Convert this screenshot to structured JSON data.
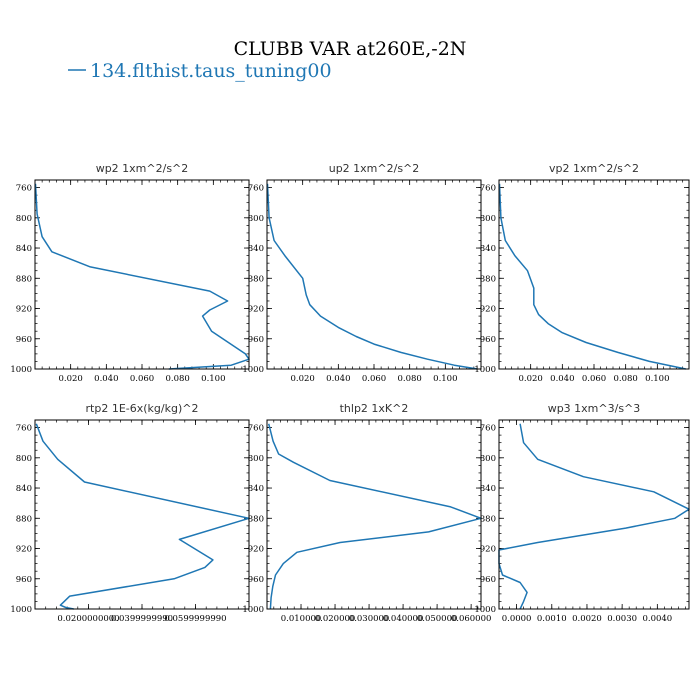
{
  "figure": {
    "title": "CLUBB VAR at260E,-2N",
    "legend": [
      {
        "label": "134.flthist.taus_tuning00",
        "color": "#1f77b4"
      }
    ]
  },
  "chart_data": [
    {
      "type": "line",
      "title": "wp2   1xm^2/s^2",
      "ylim": [
        1000,
        750
      ],
      "yticks": [
        760,
        800,
        840,
        880,
        920,
        960,
        1000
      ],
      "xlim": [
        0,
        0.12
      ],
      "xticks": [
        0.02,
        0.04,
        0.06,
        0.08,
        0.1
      ],
      "xticklabels": [
        "0.020",
        "0.040",
        "0.060",
        "0.080",
        "0.100"
      ],
      "series": [
        {
          "color": "#1f77b4",
          "x": [
            0.0003,
            0.0012,
            0.004,
            0.0095,
            0.031,
            0.098,
            0.108,
            0.098,
            0.094,
            0.099,
            0.118,
            0.12,
            0.11,
            0.075
          ],
          "y": [
            755,
            795,
            825,
            845,
            865,
            897,
            910,
            922,
            930,
            950,
            980,
            987,
            995,
            1000
          ]
        }
      ]
    },
    {
      "type": "line",
      "title": "up2   1xm^2/s^2",
      "ylim": [
        1000,
        750
      ],
      "yticks": [
        760,
        800,
        840,
        880,
        920,
        960,
        1000
      ],
      "xlim": [
        0,
        0.12
      ],
      "xticks": [
        0.02,
        0.04,
        0.06,
        0.08,
        0.1
      ],
      "xticklabels": [
        "0.020",
        "0.040",
        "0.060",
        "0.080",
        "0.100"
      ],
      "series": [
        {
          "color": "#1f77b4",
          "x": [
            0.0003,
            0.0012,
            0.004,
            0.01,
            0.02,
            0.022,
            0.024,
            0.03,
            0.04,
            0.05,
            0.06,
            0.075,
            0.09,
            0.105,
            0.118
          ],
          "y": [
            755,
            800,
            830,
            850,
            880,
            902,
            915,
            930,
            945,
            957,
            967,
            978,
            987,
            995,
            1000
          ]
        }
      ]
    },
    {
      "type": "line",
      "title": "vp2   1xm^2/s^2",
      "ylim": [
        1000,
        750
      ],
      "yticks": [
        760,
        800,
        840,
        880,
        920,
        960,
        1000
      ],
      "xlim": [
        0,
        0.12
      ],
      "xticks": [
        0.02,
        0.04,
        0.06,
        0.08,
        0.1
      ],
      "xticklabels": [
        "0.020",
        "0.040",
        "0.060",
        "0.080",
        "0.100"
      ],
      "series": [
        {
          "color": "#1f77b4",
          "x": [
            0.0003,
            0.0012,
            0.004,
            0.01,
            0.018,
            0.022,
            0.022,
            0.025,
            0.031,
            0.04,
            0.055,
            0.075,
            0.095,
            0.118
          ],
          "y": [
            755,
            800,
            830,
            850,
            870,
            893,
            915,
            928,
            940,
            952,
            965,
            978,
            990,
            1000
          ]
        }
      ]
    },
    {
      "type": "line",
      "title": "rtp2   1E-6x(kg/kg)^2",
      "ylim": [
        1000,
        750
      ],
      "yticks": [
        760,
        800,
        840,
        880,
        920,
        960,
        1000
      ],
      "xlim": [
        0,
        0.08
      ],
      "xticks": [
        0.02,
        0.04,
        0.06
      ],
      "xticklabels": [
        "0.0200000000",
        "0.0399999990",
        "0.0599999990"
      ],
      "series": [
        {
          "color": "#1f77b4",
          "x": [
            0.0005,
            0.003,
            0.0085,
            0.0185,
            0.08,
            0.054,
            0.0665,
            0.0635,
            0.052,
            0.013,
            0.0095,
            0.0115,
            0.0145
          ],
          "y": [
            755,
            778,
            802,
            832,
            880,
            908,
            935,
            945,
            960,
            983,
            995,
            998,
            1000
          ]
        }
      ]
    },
    {
      "type": "line",
      "title": "thlp2   1xK^2",
      "ylim": [
        1000,
        750
      ],
      "yticks": [
        760,
        800,
        840,
        880,
        920,
        960,
        1000
      ],
      "xlim": [
        0,
        0.0629
      ],
      "xticks": [
        0.01,
        0.02,
        0.03,
        0.04,
        0.05,
        0.06
      ],
      "xticklabels": [
        "0.010000",
        "0.020000",
        "0.030000",
        "0.040000",
        "0.050000",
        "0.060000"
      ],
      "series": [
        {
          "color": "#1f77b4",
          "x": [
            0.0005,
            0.0018,
            0.0034,
            0.0078,
            0.0185,
            0.054,
            0.0629,
            0.0475,
            0.0215,
            0.0088,
            0.0048,
            0.0025,
            0.0017,
            0.0012,
            0.001
          ],
          "y": [
            755,
            778,
            795,
            806,
            830,
            865,
            880,
            898,
            912,
            925,
            940,
            955,
            970,
            985,
            1000
          ]
        }
      ]
    },
    {
      "type": "line",
      "title": "wp3   1xm^3/s^3",
      "ylim": [
        1000,
        750
      ],
      "yticks": [
        760,
        800,
        840,
        880,
        920,
        960,
        1000
      ],
      "xlim": [
        -0.0005,
        0.0049
      ],
      "xticks": [
        0.0,
        0.001,
        0.002,
        0.003,
        0.004
      ],
      "xticklabels": [
        "0.0000",
        "0.0010",
        "0.0020",
        "0.0030",
        "0.0040"
      ],
      "series": [
        {
          "color": "#1f77b4",
          "x": [
            0.0001,
            0.0002,
            0.0006,
            0.0019,
            0.0039,
            0.0049,
            0.0045,
            0.0031,
            0.0006,
            -0.0005,
            -0.0005,
            -0.0004,
            0.0001,
            0.0003,
            0.0002,
            0.0001
          ],
          "y": [
            755,
            780,
            802,
            825,
            845,
            868,
            880,
            893,
            912,
            922,
            940,
            955,
            965,
            978,
            990,
            1000
          ]
        }
      ]
    }
  ]
}
